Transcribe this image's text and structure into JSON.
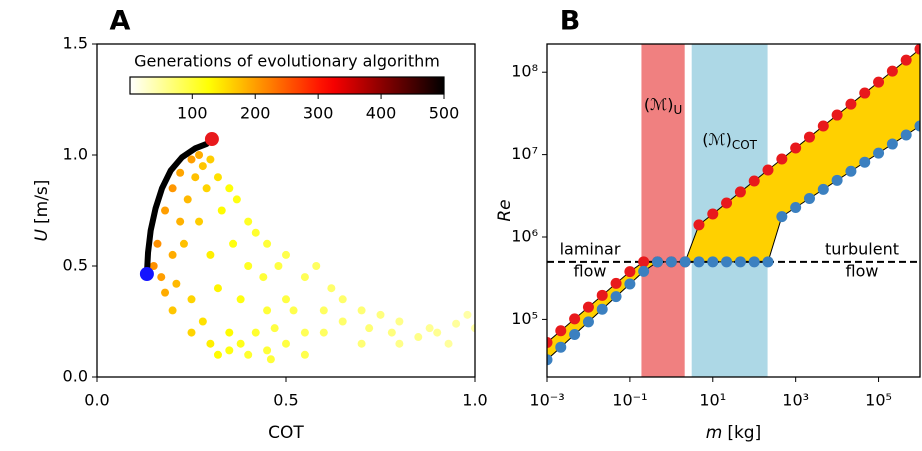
{
  "chart_data": [
    {
      "type": "scatter",
      "panel": "A",
      "xlabel": "COT",
      "ylabel": {
        "var": "U",
        "unit": "[m/s]"
      },
      "xlim": [
        0,
        1
      ],
      "ylim": [
        0,
        1.5
      ],
      "xticks": [
        {
          "value": 0,
          "label": "0.0"
        },
        {
          "value": 0.5,
          "label": "0.5"
        },
        {
          "value": 1,
          "label": "1.0"
        }
      ],
      "yticks": [
        {
          "value": 0,
          "label": "0.0"
        },
        {
          "value": 0.5,
          "label": "0.5"
        },
        {
          "value": 1,
          "label": "1.0"
        },
        {
          "value": 1.5,
          "label": "1.5"
        }
      ],
      "colorbar": {
        "title": "Generations of evolutionary algorithm",
        "lim": [
          1,
          500
        ],
        "ticks": [
          100,
          200,
          300,
          400,
          500
        ],
        "colormap": "hot_r"
      },
      "points": {
        "x": [
          0.16,
          0.18,
          0.2,
          0.22,
          0.25,
          0.27,
          0.15,
          0.17,
          0.2,
          0.22,
          0.24,
          0.26,
          0.28,
          0.3,
          0.18,
          0.21,
          0.23,
          0.27,
          0.29,
          0.32,
          0.2,
          0.25,
          0.3,
          0.33,
          0.35,
          0.37,
          0.28,
          0.32,
          0.36,
          0.4,
          0.42,
          0.45,
          0.35,
          0.38,
          0.4,
          0.44,
          0.48,
          0.5,
          0.25,
          0.3,
          0.35,
          0.4,
          0.45,
          0.5,
          0.55,
          0.6,
          0.62,
          0.65,
          0.7,
          0.55,
          0.58,
          0.6,
          0.65,
          0.72,
          0.75,
          0.78,
          0.8,
          0.85,
          0.88,
          0.9,
          0.93,
          0.95,
          0.98,
          1.0,
          0.5,
          0.52,
          0.45,
          0.47,
          0.42,
          0.38,
          0.32,
          0.46,
          0.55,
          0.7,
          0.8
        ],
        "y": [
          0.6,
          0.75,
          0.85,
          0.92,
          0.98,
          1.0,
          0.5,
          0.45,
          0.55,
          0.7,
          0.8,
          0.9,
          0.95,
          0.98,
          0.38,
          0.42,
          0.6,
          0.7,
          0.85,
          0.9,
          0.3,
          0.35,
          0.55,
          0.75,
          0.85,
          0.8,
          0.25,
          0.4,
          0.6,
          0.7,
          0.65,
          0.6,
          0.2,
          0.35,
          0.5,
          0.45,
          0.5,
          0.55,
          0.2,
          0.15,
          0.12,
          0.1,
          0.12,
          0.15,
          0.2,
          0.3,
          0.4,
          0.35,
          0.3,
          0.45,
          0.5,
          0.2,
          0.25,
          0.22,
          0.28,
          0.2,
          0.25,
          0.18,
          0.22,
          0.2,
          0.15,
          0.24,
          0.28,
          0.22,
          0.35,
          0.3,
          0.3,
          0.22,
          0.2,
          0.15,
          0.1,
          0.08,
          0.1,
          0.15,
          0.15
        ],
        "generation": [
          210,
          200,
          205,
          195,
          200,
          190,
          210,
          200,
          190,
          185,
          180,
          175,
          170,
          165,
          190,
          180,
          175,
          165,
          160,
          150,
          170,
          160,
          140,
          130,
          125,
          120,
          150,
          135,
          120,
          110,
          105,
          100,
          130,
          120,
          110,
          100,
          95,
          90,
          160,
          140,
          120,
          105,
          100,
          95,
          85,
          80,
          75,
          75,
          70,
          85,
          80,
          80,
          75,
          70,
          65,
          65,
          60,
          60,
          55,
          55,
          50,
          50,
          45,
          45,
          95,
          90,
          100,
          95,
          105,
          115,
          130,
          100,
          90,
          70,
          60
        ]
      },
      "front": {
        "color": "#000000",
        "x": [
          0.132,
          0.135,
          0.142,
          0.155,
          0.172,
          0.195,
          0.225,
          0.26,
          0.29
        ],
        "y": [
          0.464,
          0.56,
          0.66,
          0.76,
          0.85,
          0.93,
          0.99,
          1.03,
          1.05
        ]
      },
      "endpoints": [
        {
          "color": "#e8191c",
          "x": 0.304,
          "y": 1.072
        },
        {
          "color": "#1414ff",
          "x": 0.132,
          "y": 0.464
        }
      ]
    },
    {
      "type": "line",
      "panel": "B",
      "xlabel": {
        "var": "m",
        "unit": "[kg]"
      },
      "ylabel": "Re",
      "xscale": "log",
      "yscale": "log",
      "xlim": [
        0.001,
        1000000
      ],
      "ylim": [
        20000,
        220000000
      ],
      "xticks": [
        {
          "value": 0.001,
          "label": "10⁻³"
        },
        {
          "value": 0.1,
          "label": "10⁻¹"
        },
        {
          "value": 10,
          "label": "10¹"
        },
        {
          "value": 1000,
          "label": "10³"
        },
        {
          "value": 100000,
          "label": "10⁵"
        }
      ],
      "yticks": [
        {
          "value": 100000,
          "label": "10⁵"
        },
        {
          "value": 1000000,
          "label": "10⁶"
        },
        {
          "value": 10000000,
          "label": "10⁷"
        },
        {
          "value": 100000000,
          "label": "10⁸"
        }
      ],
      "x": [
        0.001,
        0.00215,
        0.00464,
        0.01,
        0.0215,
        0.0464,
        0.1,
        0.215,
        0.464,
        1,
        2.15,
        4.64,
        10,
        21.5,
        46.4,
        100,
        215,
        464,
        1000,
        2154,
        4642,
        10000,
        21544,
        46416,
        100000,
        215443,
        464159,
        1000000
      ],
      "series": [
        {
          "color": "#e8191c",
          "values": [
            52500,
            72900,
            101600,
            141000,
            196000,
            273500,
            380000,
            500000,
            500000,
            500000,
            500000,
            1403000,
            1905000,
            2588000,
            3524000,
            4786000,
            6501000,
            8851000,
            12020000,
            16330000,
            22230000,
            30200000,
            41020000,
            55850000,
            75860000,
            103000000,
            140300000,
            190500000
          ]
        },
        {
          "color": "#3b80c0",
          "values": [
            32400,
            46000,
            65600,
            93300,
            132700,
            189200,
            269200,
            382800,
            500000,
            500000,
            500000,
            500000,
            500000,
            500000,
            500000,
            500000,
            500000,
            1770000,
            2280000,
            2938000,
            3784000,
            4875000,
            6281000,
            8091000,
            10420000,
            13430000,
            17300000,
            22280000
          ]
        }
      ],
      "fill_color": "#ffd000",
      "hline": {
        "value": 500000,
        "color": "#000000"
      },
      "bands": [
        {
          "x": [
            0.19,
            2.1
          ],
          "color": "#f08080",
          "label": {
            "text": "(ℳ)",
            "sub": "U"
          }
        },
        {
          "x": [
            3.1,
            210
          ],
          "color": "#add8e6",
          "label": {
            "text": "(ℳ)",
            "sub": "COT"
          }
        }
      ],
      "annotations": [
        {
          "lines": [
            "laminar",
            "flow"
          ]
        },
        {
          "lines": [
            "turbulent",
            "flow"
          ]
        }
      ]
    }
  ]
}
